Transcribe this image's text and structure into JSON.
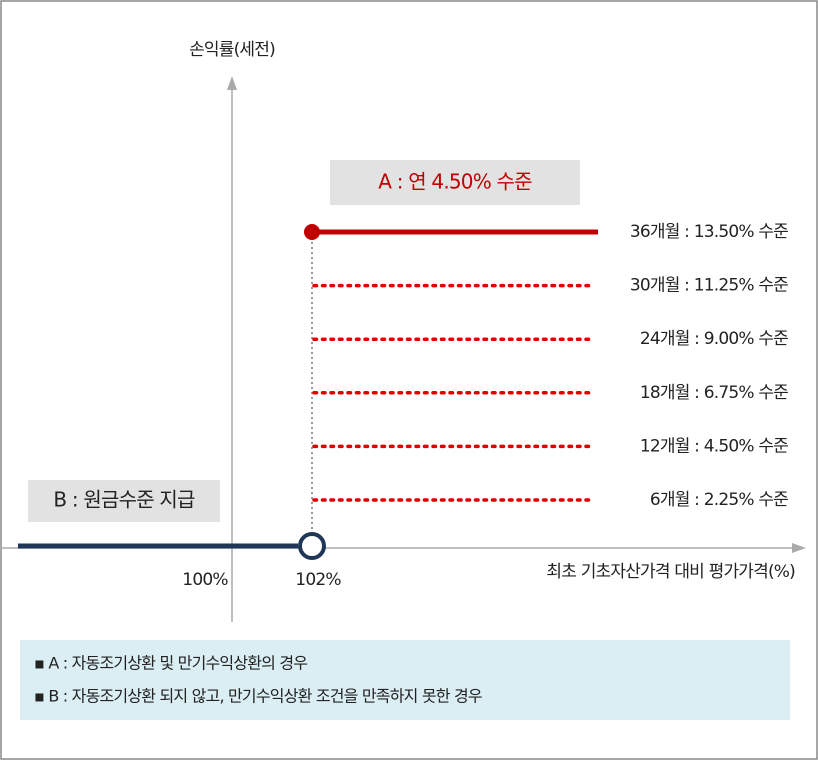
{
  "diagram": {
    "y_axis_label": "손익률(세전)",
    "x_axis_label": "최초 기초자산가격 대비 평가가격(%)",
    "a_box": "A : 연 4.50% 수준",
    "b_box": "B : 원금수준 지급",
    "x_labels": [
      "100%",
      "102%"
    ],
    "levels": [
      "36개월 : 13.50% 수준",
      "30개월 : 11.25% 수준",
      "24개월 : 9.00% 수준",
      "18개월 : 6.75% 수준",
      "12개월 : 4.50% 수준",
      "6개월 : 2.25% 수준"
    ],
    "notes": [
      "▪ A : 자동조기상환 및 만기수익상환의 경우",
      "▪ B : 자동조기상환 되지 않고, 만기수익상환 조건을 만족하지 못한 경우"
    ]
  }
}
